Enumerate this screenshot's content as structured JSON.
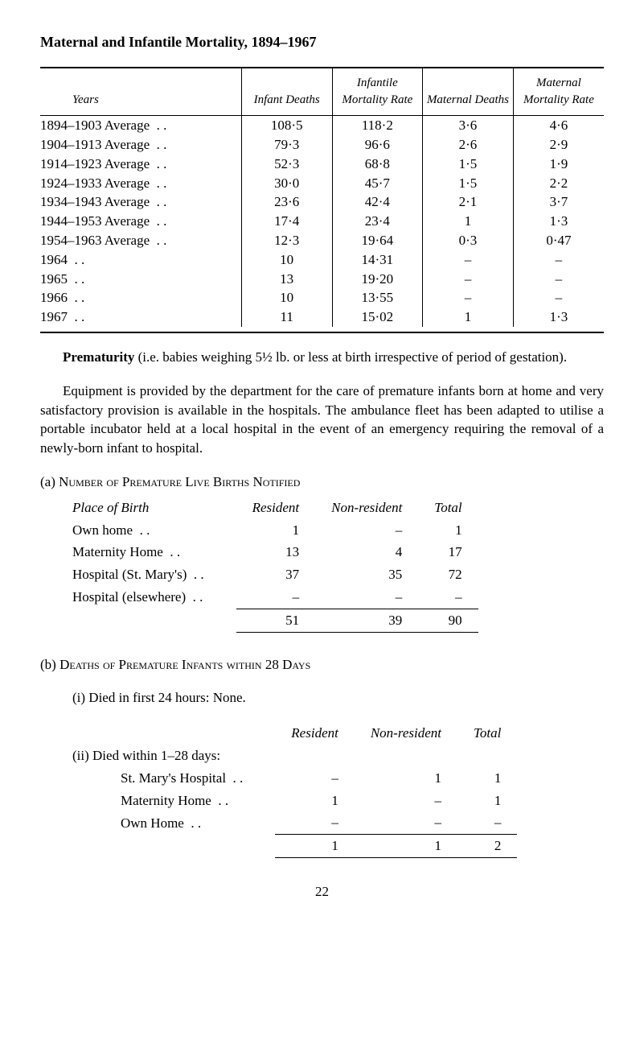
{
  "title": "Maternal and Infantile Mortality, 1894–1967",
  "mainTable": {
    "headers": [
      "Years",
      "Infant Deaths",
      "Infantile Mortality Rate",
      "Maternal Deaths",
      "Maternal Mortality Rate"
    ],
    "rows": [
      [
        "1894–1903 Average",
        "108·5",
        "118·2",
        "3·6",
        "4·6"
      ],
      [
        "1904–1913 Average",
        "79·3",
        "96·6",
        "2·6",
        "2·9"
      ],
      [
        "1914–1923 Average",
        "52·3",
        "68·8",
        "1·5",
        "1·9"
      ],
      [
        "1924–1933 Average",
        "30·0",
        "45·7",
        "1·5",
        "2·2"
      ],
      [
        "1934–1943 Average",
        "23·6",
        "42·4",
        "2·1",
        "3·7"
      ],
      [
        "1944–1953 Average",
        "17·4",
        "23·4",
        "1",
        "1·3"
      ],
      [
        "1954–1963 Average",
        "12·3",
        "19·64",
        "0·3",
        "0·47"
      ],
      [
        "1964",
        "10",
        "14·31",
        "–",
        "–"
      ],
      [
        "1965",
        "13",
        "19·20",
        "–",
        "–"
      ],
      [
        "1966",
        "10",
        "13·55",
        "–",
        "–"
      ],
      [
        "1967",
        "11",
        "15·02",
        "1",
        "1·3"
      ]
    ]
  },
  "prematurity": {
    "runIn": "Prematurity",
    "body": " (i.e. babies weighing 5½ lb. or less at birth irrespective of period of gestation)."
  },
  "equipmentPara": "Equipment is provided by the department for the care of premature infants born at home and very satisfactory provision is available in the hospitals. The ambulance fleet has been adapted to utilise a portable incubator held at a local hospital in the event of an emergency requiring the removal of a newly-born infant to hospital.",
  "sectionA": {
    "label": "(a) ",
    "title": "Number of Premature Live Births Notified",
    "headers": [
      "Place of Birth",
      "Resident",
      "Non-resident",
      "Total"
    ],
    "rows": [
      [
        "Own home",
        "1",
        "–",
        "1"
      ],
      [
        "Maternity Home",
        "13",
        "4",
        "17"
      ],
      [
        "Hospital (St. Mary's)",
        "37",
        "35",
        "72"
      ],
      [
        "Hospital (elsewhere)",
        "–",
        "–",
        "–"
      ]
    ],
    "totals": [
      "",
      "51",
      "39",
      "90"
    ]
  },
  "sectionB": {
    "label": "(b) ",
    "title": "Deaths of Premature Infants within 28 Days",
    "subI": "(i) Died in first 24 hours: None.",
    "subII": "(ii) Died within 1–28 days:",
    "headers": [
      "",
      "Resident",
      "Non-resident",
      "Total"
    ],
    "rows": [
      [
        "St. Mary's Hospital",
        "–",
        "1",
        "1"
      ],
      [
        "Maternity Home",
        "1",
        "–",
        "1"
      ],
      [
        "Own Home",
        "–",
        "–",
        "–"
      ]
    ],
    "totals": [
      "",
      "1",
      "1",
      "2"
    ]
  },
  "pageNumber": "22"
}
